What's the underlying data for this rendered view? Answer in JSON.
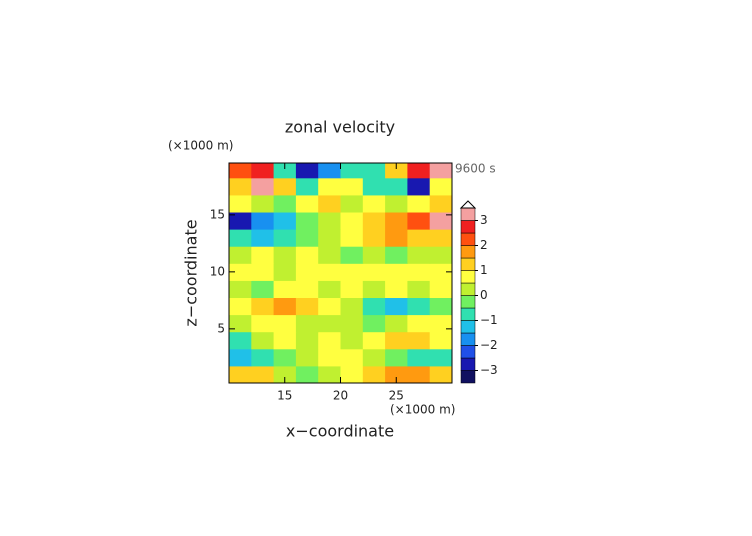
{
  "chart_data": {
    "type": "contour",
    "title": "zonal velocity",
    "x_unit": "(×1000 m)",
    "y_unit": "(×1000 m)",
    "time_label": "9600 s",
    "x_label": "x−coordinate",
    "y_label": "z−coordinate",
    "xlim": [
      10,
      30
    ],
    "ylim": [
      0.25,
      19.55
    ],
    "xticks": [
      15,
      20,
      25
    ],
    "yticks": [
      5,
      10,
      15
    ],
    "x": [
      11,
      13,
      15,
      17,
      19,
      21,
      23,
      25,
      27,
      29
    ],
    "z": [
      1,
      2.5,
      4,
      5.5,
      7,
      8.5,
      10,
      11.5,
      13,
      14.5,
      16,
      17.5,
      19
    ],
    "values": [
      [
        1,
        1,
        0,
        -0.5,
        0,
        0.5,
        1,
        1.5,
        1.5,
        1
      ],
      [
        -1.5,
        -1,
        -0.5,
        0,
        0.5,
        0.5,
        0,
        -0.5,
        -1,
        -1
      ],
      [
        -1,
        0,
        0.5,
        0,
        0.5,
        0,
        0.5,
        1,
        1,
        0.5
      ],
      [
        0,
        0.5,
        0.5,
        0,
        0,
        0,
        -0.5,
        0,
        0.5,
        0.5
      ],
      [
        0.5,
        1,
        1.5,
        1,
        0.5,
        0,
        -1,
        -1.5,
        -1,
        -0.5
      ],
      [
        0,
        -0.5,
        0.5,
        0.5,
        0,
        0.5,
        0,
        0.5,
        0,
        0.5
      ],
      [
        0.5,
        0.5,
        0,
        0.5,
        0.5,
        0.5,
        0.5,
        0.5,
        0.5,
        0.5
      ],
      [
        0,
        0.5,
        0,
        0.5,
        0,
        -0.5,
        0,
        -0.5,
        0,
        0
      ],
      [
        -1,
        -1.5,
        -1,
        -0.5,
        0,
        0.5,
        1,
        1.5,
        1,
        1
      ],
      [
        -3,
        -2,
        -1.5,
        -0.5,
        0,
        0.5,
        1,
        1.5,
        2,
        3
      ],
      [
        0.5,
        0,
        -0.5,
        0.5,
        1,
        0,
        0.5,
        0,
        0.5,
        1
      ],
      [
        1,
        3,
        1,
        -1,
        0.5,
        0.5,
        -1,
        -1,
        -3,
        0.5
      ],
      [
        2,
        2.5,
        -1,
        -3,
        -2,
        -1,
        -1,
        1,
        2.5,
        3
      ]
    ],
    "clim": [
      -3.5,
      3.5
    ],
    "levels": [
      -3.5,
      -3,
      -2.5,
      -2,
      -1.5,
      -1,
      -0.5,
      0,
      0.5,
      1,
      1.5,
      2,
      2.5,
      3,
      3.5
    ],
    "colors": [
      "#101060",
      "#1818b0",
      "#2050e8",
      "#1890f0",
      "#20c0e8",
      "#30e0b0",
      "#70f060",
      "#c0f030",
      "#ffff40",
      "#ffd020",
      "#ff9a10",
      "#ff5010",
      "#f02020",
      "#f4a0a0"
    ],
    "cticks": [
      {
        "value": 3,
        "label": "3"
      },
      {
        "value": 2,
        "label": "2"
      },
      {
        "value": 1,
        "label": "1"
      },
      {
        "value": 0,
        "label": "0"
      },
      {
        "value": -1,
        "label": "−1"
      },
      {
        "value": -2,
        "label": "−2"
      },
      {
        "value": -3,
        "label": "−3"
      }
    ]
  }
}
